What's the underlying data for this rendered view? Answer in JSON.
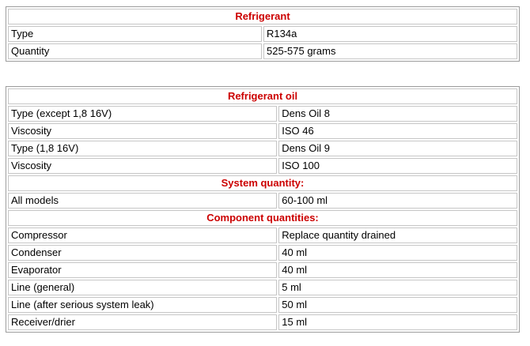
{
  "colors": {
    "section_header_red": "#cc0000",
    "table_border_gray": "#9c9c9c",
    "cell_border_gray": "#c6c6c6",
    "text_black": "#000000",
    "page_background": "#ffffff"
  },
  "tables": [
    {
      "title": "Refrigerant",
      "rows": [
        {
          "type": "header",
          "label": "Refrigerant"
        },
        {
          "type": "data",
          "label": "Type",
          "value": "R134a"
        },
        {
          "type": "data",
          "label": "Quantity",
          "value": "525-575 grams"
        }
      ]
    },
    {
      "title": "Refrigerant oil",
      "rows": [
        {
          "type": "header",
          "label": "Refrigerant oil"
        },
        {
          "type": "data",
          "label": "Type (except 1,8 16V)",
          "value": "Dens Oil 8"
        },
        {
          "type": "data",
          "label": "Viscosity",
          "value": "ISO 46"
        },
        {
          "type": "data",
          "label": "Type (1,8 16V)",
          "value": "Dens Oil 9"
        },
        {
          "type": "data",
          "label": "Viscosity",
          "value": "ISO 100"
        },
        {
          "type": "header",
          "label": "System quantity:"
        },
        {
          "type": "data",
          "label": "All models",
          "value": "60-100 ml"
        },
        {
          "type": "header",
          "label": "Component quantities:"
        },
        {
          "type": "data",
          "label": "Compressor",
          "value": "Replace quantity drained"
        },
        {
          "type": "data",
          "label": "Condenser",
          "value": "40 ml"
        },
        {
          "type": "data",
          "label": "Evaporator",
          "value": "40 ml"
        },
        {
          "type": "data",
          "label": "Line (general)",
          "value": "5 ml"
        },
        {
          "type": "data",
          "label": "Line (after serious system leak)",
          "value": "50 ml"
        },
        {
          "type": "data",
          "label": "Receiver/drier",
          "value": "15 ml"
        }
      ]
    }
  ]
}
